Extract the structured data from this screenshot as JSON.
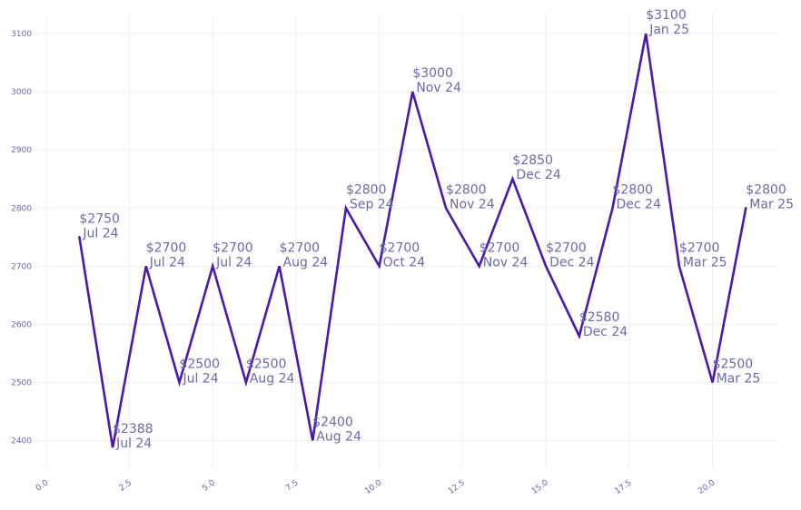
{
  "chart_data": {
    "type": "line",
    "title": "",
    "xlabel": "",
    "ylabel": "",
    "xlim": [
      -0.4,
      22
    ],
    "ylim": [
      2354,
      3136
    ],
    "grid": true,
    "line_color": "#4a1aa8",
    "label_color": "#6b6aa8",
    "x_ticks": [
      {
        "value": 0,
        "label": "0.0"
      },
      {
        "value": 2.5,
        "label": "2.5"
      },
      {
        "value": 5,
        "label": "5.0"
      },
      {
        "value": 7.5,
        "label": "7.5"
      },
      {
        "value": 10,
        "label": "10.0"
      },
      {
        "value": 12.5,
        "label": "12.5"
      },
      {
        "value": 15,
        "label": "15.0"
      },
      {
        "value": 17.5,
        "label": "17.5"
      },
      {
        "value": 20,
        "label": "20.0"
      }
    ],
    "y_ticks": [
      {
        "value": 2400,
        "label": "2400"
      },
      {
        "value": 2500,
        "label": "2500"
      },
      {
        "value": 2600,
        "label": "2600"
      },
      {
        "value": 2700,
        "label": "2700"
      },
      {
        "value": 2800,
        "label": "2800"
      },
      {
        "value": 2900,
        "label": "2900"
      },
      {
        "value": 3000,
        "label": "3000"
      },
      {
        "value": 3100,
        "label": "3100"
      }
    ],
    "points": [
      {
        "x": 1,
        "y": 2750,
        "price": "$2750",
        "month": "Jul 24"
      },
      {
        "x": 2,
        "y": 2388,
        "price": "$2388",
        "month": "Jul 24"
      },
      {
        "x": 3,
        "y": 2700,
        "price": "$2700",
        "month": "Jul 24"
      },
      {
        "x": 4,
        "y": 2500,
        "price": "$2500",
        "month": "Jul 24"
      },
      {
        "x": 5,
        "y": 2700,
        "price": "$2700",
        "month": "Jul 24"
      },
      {
        "x": 6,
        "y": 2500,
        "price": "$2500",
        "month": "Aug 24"
      },
      {
        "x": 7,
        "y": 2700,
        "price": "$2700",
        "month": "Aug 24"
      },
      {
        "x": 8,
        "y": 2400,
        "price": "$2400",
        "month": "Aug 24"
      },
      {
        "x": 9,
        "y": 2800,
        "price": "$2800",
        "month": "Sep 24"
      },
      {
        "x": 10,
        "y": 2700,
        "price": "$2700",
        "month": "Oct 24"
      },
      {
        "x": 11,
        "y": 3000,
        "price": "$3000",
        "month": "Nov 24"
      },
      {
        "x": 12,
        "y": 2800,
        "price": "$2800",
        "month": "Nov 24"
      },
      {
        "x": 13,
        "y": 2700,
        "price": "$2700",
        "month": "Nov 24"
      },
      {
        "x": 14,
        "y": 2850,
        "price": "$2850",
        "month": "Dec 24"
      },
      {
        "x": 15,
        "y": 2700,
        "price": "$2700",
        "month": "Dec 24"
      },
      {
        "x": 16,
        "y": 2580,
        "price": "$2580",
        "month": "Dec 24"
      },
      {
        "x": 17,
        "y": 2800,
        "price": "$2800",
        "month": "Dec 24"
      },
      {
        "x": 18,
        "y": 3100,
        "price": "$3100",
        "month": "Jan 25"
      },
      {
        "x": 19,
        "y": 2700,
        "price": "$2700",
        "month": "Mar 25"
      },
      {
        "x": 20,
        "y": 2500,
        "price": "$2500",
        "month": "Mar 25"
      },
      {
        "x": 21,
        "y": 2800,
        "price": "$2800",
        "month": "Mar 25"
      }
    ]
  }
}
